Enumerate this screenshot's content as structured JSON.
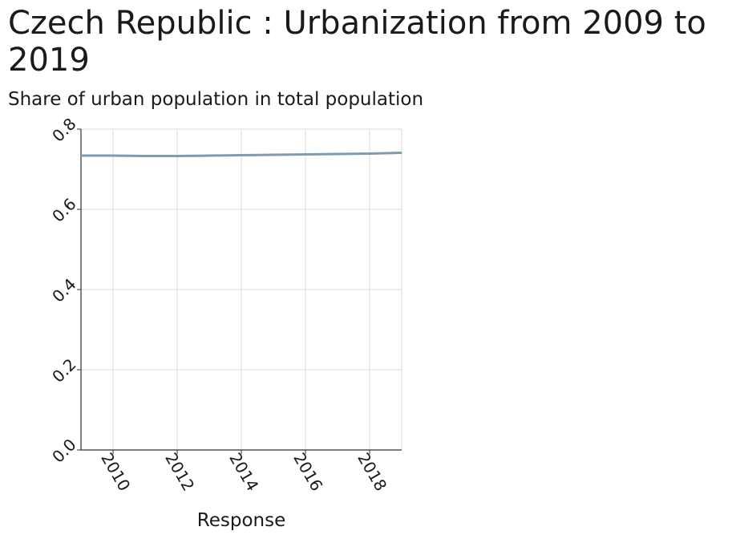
{
  "chart_data": {
    "type": "line",
    "title": "Czech Republic : Urbanization from 2009 to 2019",
    "ylabel": "Share of urban population in total population",
    "xlabel": "Response",
    "x": [
      2009,
      2010,
      2011,
      2012,
      2013,
      2014,
      2015,
      2016,
      2017,
      2018,
      2019
    ],
    "series": [
      {
        "values": [
          0.734,
          0.734,
          0.733,
          0.733,
          0.734,
          0.735,
          0.736,
          0.737,
          0.738,
          0.739,
          0.741
        ]
      }
    ],
    "xlim": [
      2009,
      2019
    ],
    "ylim": [
      0,
      0.8
    ],
    "xticks": [
      2010,
      2012,
      2014,
      2016,
      2018
    ],
    "yticks": [
      "0.0",
      "0.2",
      "0.4",
      "0.6",
      "0.8"
    ],
    "grid": true,
    "line_color": "#7f9bb0"
  }
}
